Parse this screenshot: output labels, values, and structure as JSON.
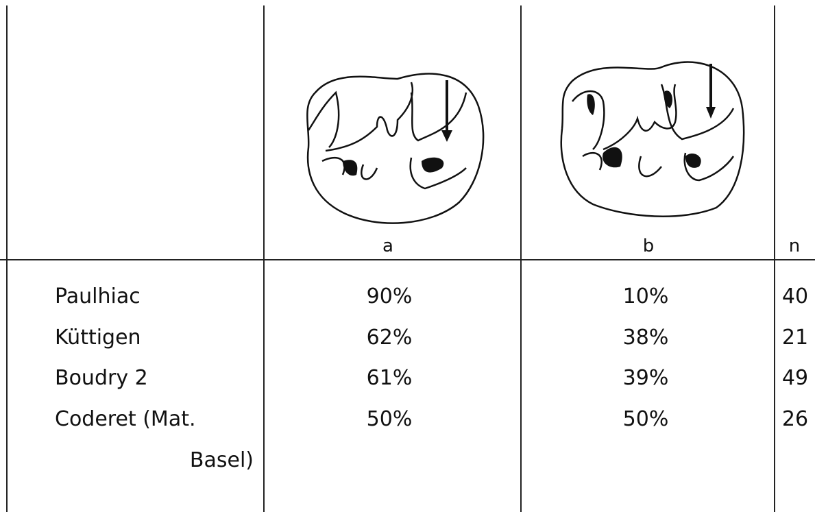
{
  "table": {
    "header": [
      "a",
      "b",
      "n"
    ],
    "rows": [
      [
        "Paulhiac",
        "90%",
        "10%",
        "40"
      ],
      [
        "Küttigen",
        "62%",
        "38%",
        "21"
      ],
      [
        "Boudry 2",
        "61%",
        "39%",
        "49"
      ],
      [
        "Coderet (Mat. Basel)",
        "50%",
        "50%",
        "26"
      ]
    ]
  }
}
